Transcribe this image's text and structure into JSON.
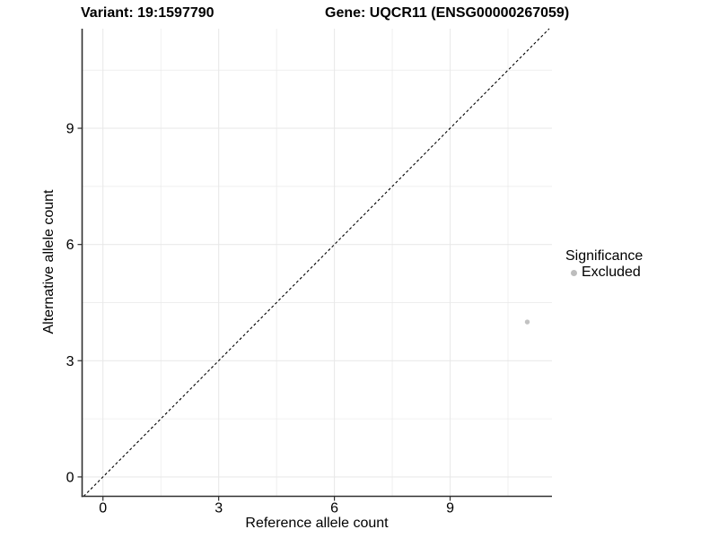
{
  "chart_data": {
    "type": "scatter",
    "titles": {
      "left": "Variant: 19:1597790",
      "right": "Gene: UQCR11 (ENSG00000267059)"
    },
    "xlabel": "Reference allele count",
    "ylabel": "Alternative allele count",
    "xticks": [
      0,
      3,
      6,
      9
    ],
    "yticks": [
      0,
      3,
      6,
      9
    ],
    "minor_ticks_x": [
      1.5,
      4.5,
      7.5,
      10.5
    ],
    "minor_ticks_y": [
      1.5,
      4.5,
      7.5,
      10.5
    ],
    "xlim": [
      -0.54,
      11.64
    ],
    "ylim": [
      -0.5,
      11.57
    ],
    "grid": "on",
    "identity_line": {
      "equation": "y = x",
      "style": "dashed",
      "color": "#000000"
    },
    "points": [
      {
        "x": 11,
        "y": 4,
        "significance": "Excluded",
        "color": "#c2c2c2"
      }
    ],
    "legend": {
      "title": "Significance",
      "position": "right",
      "items": [
        {
          "label": "Excluded",
          "color": "#bdbdbd"
        }
      ]
    },
    "colors": {
      "axis_line": "#303030",
      "tick_mark": "#303030",
      "gridline": "#e9e9e9",
      "tick_text": "#000000",
      "background": "#ffffff"
    }
  }
}
